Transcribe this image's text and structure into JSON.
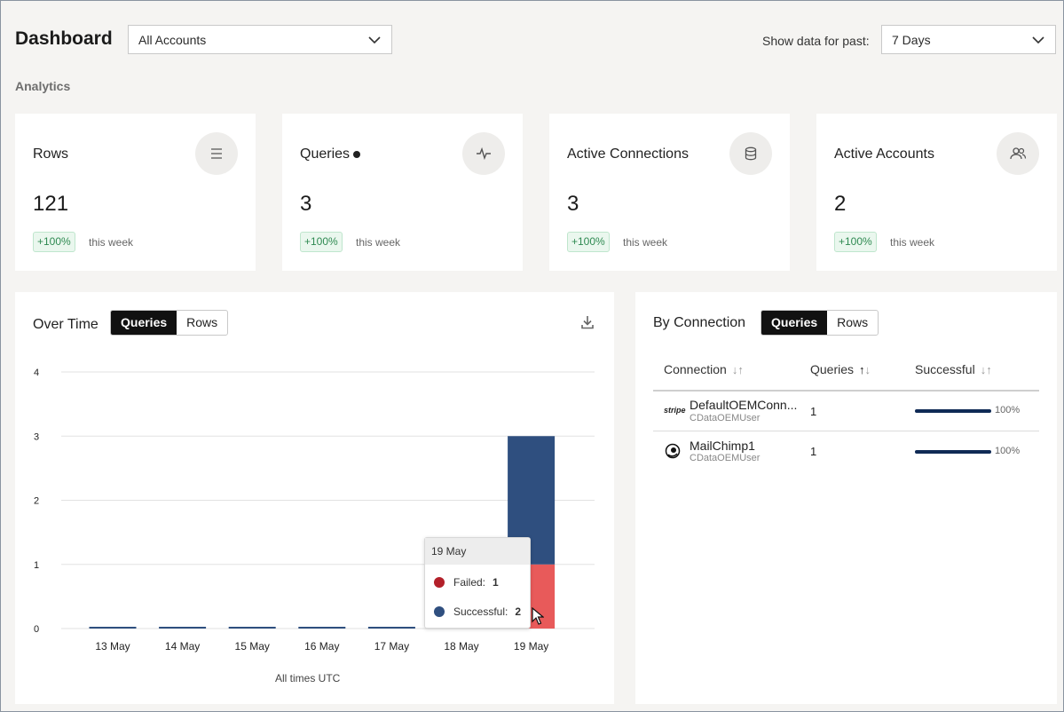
{
  "header": {
    "title": "Dashboard",
    "account_select": "All Accounts",
    "range_label": "Show data for past:",
    "range_select": "7 Days"
  },
  "section": "Analytics",
  "kpis": [
    {
      "title": "Rows",
      "value": "121",
      "badge": "+100%",
      "period": "this week",
      "icon": "list-icon"
    },
    {
      "title": "Queries",
      "value": "3",
      "badge": "+100%",
      "period": "this week",
      "icon": "pulse-icon"
    },
    {
      "title": "Active Connections",
      "value": "3",
      "badge": "+100%",
      "period": "this week",
      "icon": "database-icon"
    },
    {
      "title": "Active Accounts",
      "value": "2",
      "badge": "+100%",
      "period": "this week",
      "icon": "users-icon"
    }
  ],
  "over_time": {
    "title": "Over Time",
    "toggle": [
      "Queries",
      "Rows"
    ],
    "active_toggle": "Queries",
    "footer": "All times UTC",
    "download_icon": "download-icon"
  },
  "chart_data": {
    "type": "bar",
    "stacked": true,
    "categories": [
      "13 May",
      "14 May",
      "15 May",
      "16 May",
      "17 May",
      "18 May",
      "19 May"
    ],
    "series": [
      {
        "name": "Failed",
        "values": [
          0,
          0,
          0,
          0,
          0,
          0,
          1
        ],
        "color": "#e85a5a"
      },
      {
        "name": "Successful",
        "values": [
          0,
          0,
          0,
          0,
          0,
          0,
          2
        ],
        "color": "#2f4f7f"
      }
    ],
    "yticks": [
      "0",
      "1",
      "2",
      "3",
      "4"
    ],
    "ylim": [
      0,
      4
    ],
    "grid": true
  },
  "tooltip": {
    "date": "19 May",
    "rows": [
      {
        "label": "Failed:",
        "value": "1",
        "color": "#b3202a"
      },
      {
        "label": "Successful:",
        "value": "2",
        "color": "#2f4f7f"
      }
    ]
  },
  "by_connection": {
    "title": "By Connection",
    "toggle": [
      "Queries",
      "Rows"
    ],
    "active_toggle": "Queries",
    "columns": [
      "Connection",
      "Queries",
      "Successful"
    ],
    "rows": [
      {
        "logo": "stripe",
        "name": "DefaultOEMConn...",
        "user": "CDataOEMUser",
        "queries": "1",
        "success": "100%",
        "success_fraction": 1.0
      },
      {
        "logo": "mailchimp-icon",
        "name": "MailChimp1",
        "user": "CDataOEMUser",
        "queries": "1",
        "success": "100%",
        "success_fraction": 1.0
      }
    ]
  }
}
